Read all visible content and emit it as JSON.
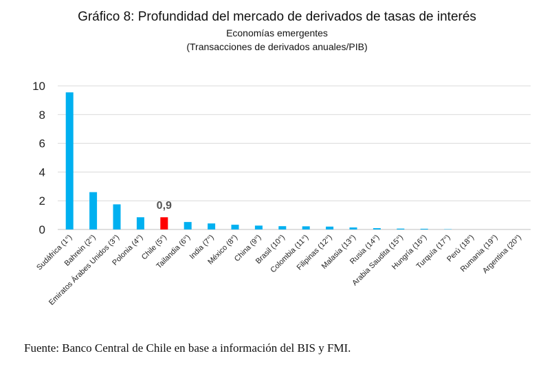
{
  "chart_data": {
    "type": "bar",
    "title": "Gráfico 8: Profundidad del mercado de derivados de tasas de interés",
    "subtitle": "Economías emergentes",
    "subtitle2": "(Transacciones de derivados anuales/PIB)",
    "ylim": [
      0,
      10
    ],
    "yticks": [
      "0",
      "2",
      "4",
      "6",
      "8",
      "10"
    ],
    "grid": true,
    "categories": [
      "Sudáfrica (1°)",
      "Bahrein (2°)",
      "Emiratos Árabes Unidos (3°)",
      "Polonia (4°)",
      "Chile (5°)",
      "Tailandia (6°)",
      "India (7°)",
      "México (8°)",
      "China (9°)",
      "Brasil (10°)",
      "Colombia (11°)",
      "Filipinas (12°)",
      "Malasia (13°)",
      "Rusia (14°)",
      "Arabia Saudita (15°)",
      "Hungría (16°)",
      "Turquía (17°)",
      "Perú (18°)",
      "Rumania (19°)",
      "Argentina (20°)"
    ],
    "values": [
      9.55,
      2.6,
      1.75,
      0.85,
      0.85,
      0.52,
      0.42,
      0.33,
      0.27,
      0.23,
      0.22,
      0.2,
      0.14,
      0.09,
      0.06,
      0.05,
      0.02,
      0.01,
      0.01,
      0.0
    ],
    "bar_color": "#00b0f0",
    "highlight_color": "#ff0000",
    "highlight_index": 4,
    "annotation": {
      "category": "Chile (5°)",
      "text": "0,9"
    }
  },
  "footer": {
    "source": "Fuente: Banco Central de Chile en base a información del BIS y FMI."
  }
}
